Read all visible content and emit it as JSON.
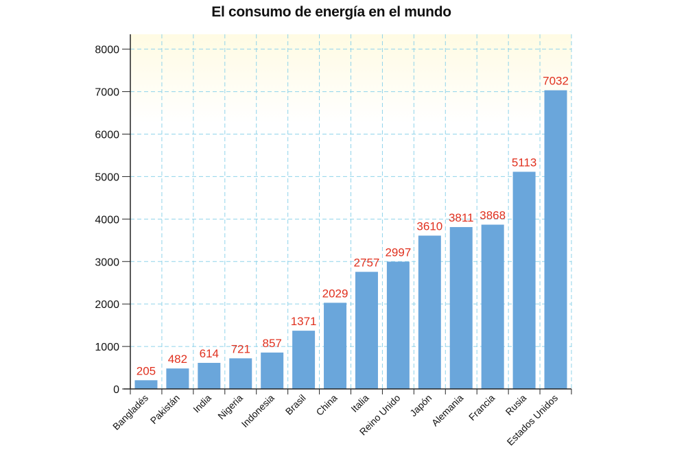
{
  "chart_data": {
    "type": "bar",
    "title": "El consumo de energía en el mundo",
    "xlabel": "",
    "ylabel": "",
    "categories": [
      "Bangladés",
      "Pakistán",
      "India",
      "Nigeria",
      "Indonesia",
      "Brasil",
      "China",
      "Italia",
      "Reino Unido",
      "Japón",
      "Alemania",
      "Francia",
      "Rusia",
      "Estados Unidos"
    ],
    "values": [
      205,
      482,
      614,
      721,
      857,
      1371,
      2029,
      2757,
      2997,
      3610,
      3811,
      3868,
      5113,
      7032
    ],
    "ylim": [
      0,
      8350
    ],
    "yticks": [
      0,
      1000,
      2000,
      3000,
      4000,
      5000,
      6000,
      7000,
      8000
    ],
    "grid": true,
    "data_labels": true,
    "colors": {
      "bar": "#6aa6db",
      "data_label": "#e0301e",
      "grid": "#8fd3ea",
      "plot_background_top": "#fffbe3",
      "axis": "#222222"
    }
  }
}
